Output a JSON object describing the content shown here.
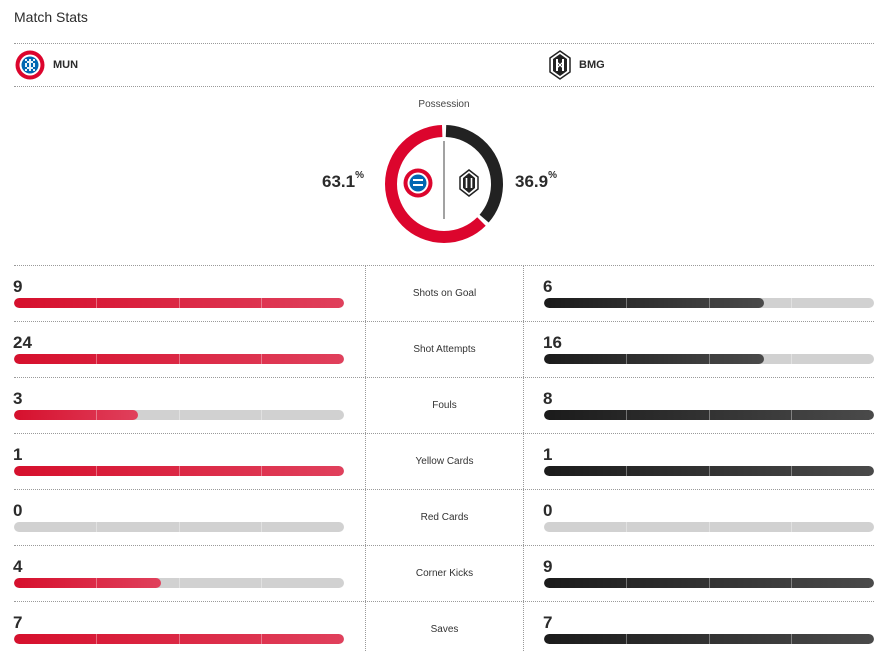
{
  "header": {
    "title": "Match Stats"
  },
  "teams": {
    "home": {
      "abbr": "MUN",
      "color": "#dc052d",
      "logo_icon": "bayern-crest-icon"
    },
    "away": {
      "abbr": "BMG",
      "color": "#222222",
      "logo_icon": "gladbach-crest-icon"
    }
  },
  "possession": {
    "label": "Possession",
    "home_value": "63.1",
    "away_value": "36.9",
    "unit": "%",
    "home_fraction": 0.631,
    "away_fraction": 0.369
  },
  "stats": [
    {
      "label": "Shots on Goal",
      "home": "9",
      "away": "6",
      "home_fill": 1.0,
      "away_fill": 0.6667
    },
    {
      "label": "Shot Attempts",
      "home": "24",
      "away": "16",
      "home_fill": 1.0,
      "away_fill": 0.6667
    },
    {
      "label": "Fouls",
      "home": "3",
      "away": "8",
      "home_fill": 0.375,
      "away_fill": 1.0
    },
    {
      "label": "Yellow Cards",
      "home": "1",
      "away": "1",
      "home_fill": 1.0,
      "away_fill": 1.0
    },
    {
      "label": "Red Cards",
      "home": "0",
      "away": "0",
      "home_fill": 0,
      "away_fill": 0
    },
    {
      "label": "Corner Kicks",
      "home": "4",
      "away": "9",
      "home_fill": 0.4444,
      "away_fill": 1.0
    },
    {
      "label": "Saves",
      "home": "7",
      "away": "7",
      "home_fill": 1.0,
      "away_fill": 1.0
    }
  ]
}
